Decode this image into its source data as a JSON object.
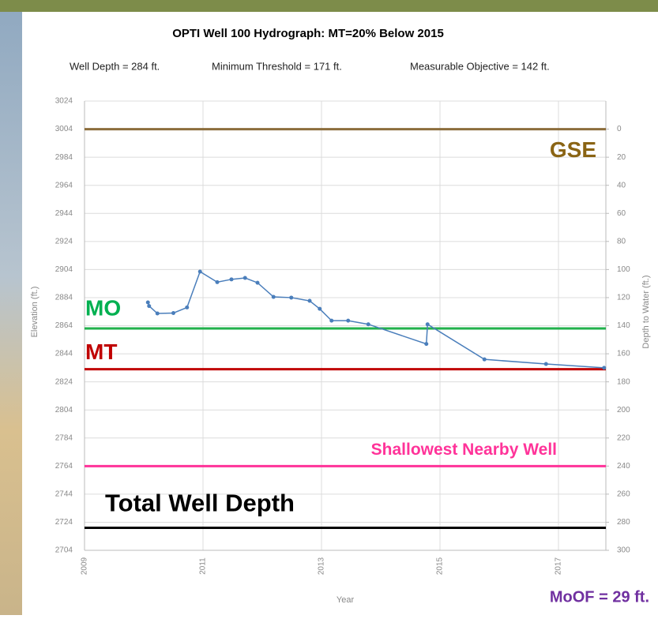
{
  "chart_data": {
    "type": "line",
    "title": "OPTI Well 100 Hydrograph: MT=20% Below 2015",
    "subtitle_parts": [
      "Well Depth = 284 ft.",
      "Minimum Threshold = 171 ft.",
      "Measurable Objective = 142 ft."
    ],
    "ylabel": "Elevation (ft.)",
    "y2label": "Depth to Water (ft.)",
    "xlabel": "Year",
    "xlim": [
      2009,
      2017.8
    ],
    "xticks": [
      2009,
      2011,
      2013,
      2015,
      2017
    ],
    "ylim": [
      2704,
      3024
    ],
    "yticks": [
      2704,
      2724,
      2744,
      2764,
      2784,
      2804,
      2824,
      2844,
      2864,
      2884,
      2904,
      2924,
      2944,
      2964,
      2984,
      3004,
      3024
    ],
    "y2lim": [
      300,
      -20
    ],
    "y2ticks": [
      300,
      280,
      260,
      240,
      220,
      200,
      180,
      160,
      140,
      120,
      100,
      80,
      60,
      40,
      20,
      0
    ],
    "grid": true,
    "x": [
      2010.07,
      2010.09,
      2010.23,
      2010.5,
      2010.73,
      2010.95,
      2011.24,
      2011.48,
      2011.71,
      2011.92,
      2012.19,
      2012.49,
      2012.8,
      2012.97,
      2013.17,
      2013.45,
      2013.79,
      2014.77,
      2014.79,
      2015.75,
      2016.79,
      2017.77
    ],
    "series": [
      {
        "color": "#4a7ebb",
        "values": [
          2880.6,
          2878,
          2872.7,
          2873,
          2877,
          2902.5,
          2895,
          2897,
          2898,
          2894.6,
          2884.5,
          2884,
          2881.7,
          2876,
          2867.6,
          2867.6,
          2865,
          2851,
          2865,
          2840,
          2836.7,
          2834
        ]
      }
    ],
    "reference_lines": [
      {
        "name": "GSE",
        "value": 3004,
        "color": "#8b6d3b",
        "label_color": "#8a6414"
      },
      {
        "name": "MO",
        "value": 2862,
        "color": "#22b14c",
        "label_color": "#00b050"
      },
      {
        "name": "MT",
        "value": 2833,
        "color": "#c00000",
        "label_color": "#c00000"
      },
      {
        "name": "Shallowest Nearby Well",
        "value": 2764,
        "color": "#ff3399",
        "label_color": "#ff3399"
      },
      {
        "name": "Total Well Depth",
        "value": 2720,
        "color": "#000000",
        "label_color": "#000000"
      }
    ],
    "note": "MoOF = 29 ft."
  }
}
